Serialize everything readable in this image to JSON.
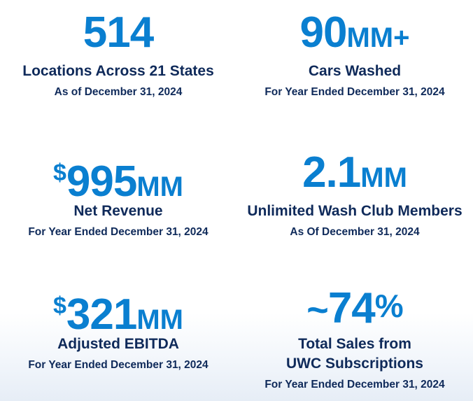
{
  "stats": [
    {
      "prefix": "",
      "number": "514",
      "unit": "",
      "suffix": "",
      "label": "Locations Across 21 States",
      "label_line2": "",
      "note": "As of December 31, 2024"
    },
    {
      "prefix": "",
      "number": "90",
      "unit": "MM+",
      "suffix": "",
      "label": "Cars Washed",
      "label_line2": "",
      "note": "For Year Ended December 31, 2024"
    },
    {
      "prefix": "$",
      "number": "995",
      "unit": "MM",
      "suffix": "",
      "label": "Net Revenue",
      "label_line2": "",
      "note": "For Year Ended December 31, 2024"
    },
    {
      "prefix": "",
      "number": "2.1",
      "unit": "MM",
      "suffix": "",
      "label": "Unlimited Wash Club Members",
      "label_line2": "",
      "note": "As Of December 31, 2024"
    },
    {
      "prefix": "$",
      "number": "321",
      "unit": "MM",
      "suffix": "",
      "label": "Adjusted EBITDA",
      "label_line2": "",
      "note": "For Year Ended December 31, 2024"
    },
    {
      "prefix": "~",
      "number": "74",
      "unit": "",
      "suffix": "%",
      "label": "Total Sales from",
      "label_line2": "UWC Subscriptions",
      "note": "For Year Ended December 31, 2024"
    }
  ]
}
